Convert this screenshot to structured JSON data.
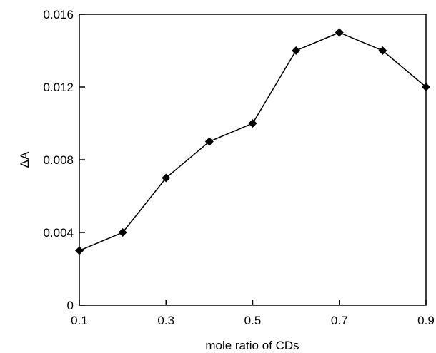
{
  "chart_data": {
    "type": "line",
    "title": "",
    "xlabel": "mole ratio of CDs",
    "ylabel": "ΔA",
    "xlim": [
      0.1,
      0.9
    ],
    "ylim": [
      0,
      0.016
    ],
    "x_ticks": [
      0.1,
      0.3,
      0.5,
      0.7,
      0.9
    ],
    "x_tick_labels": [
      "0.1",
      "0.3",
      "0.5",
      "0.7",
      "0.9"
    ],
    "y_ticks": [
      0,
      0.004,
      0.008,
      0.012,
      0.016
    ],
    "y_tick_labels": [
      "0",
      "0.004",
      "0.008",
      "0.012",
      "0.016"
    ],
    "grid": false,
    "legend": "none",
    "marker": "diamond",
    "line_color": "#000000",
    "marker_color": "#000000",
    "series": [
      {
        "x": [
          0.1,
          0.2,
          0.3,
          0.4,
          0.5,
          0.6,
          0.7,
          0.8,
          0.9
        ],
        "values": [
          0.003,
          0.004,
          0.007,
          0.009,
          0.01,
          0.014,
          0.015,
          0.014,
          0.012
        ]
      }
    ]
  }
}
